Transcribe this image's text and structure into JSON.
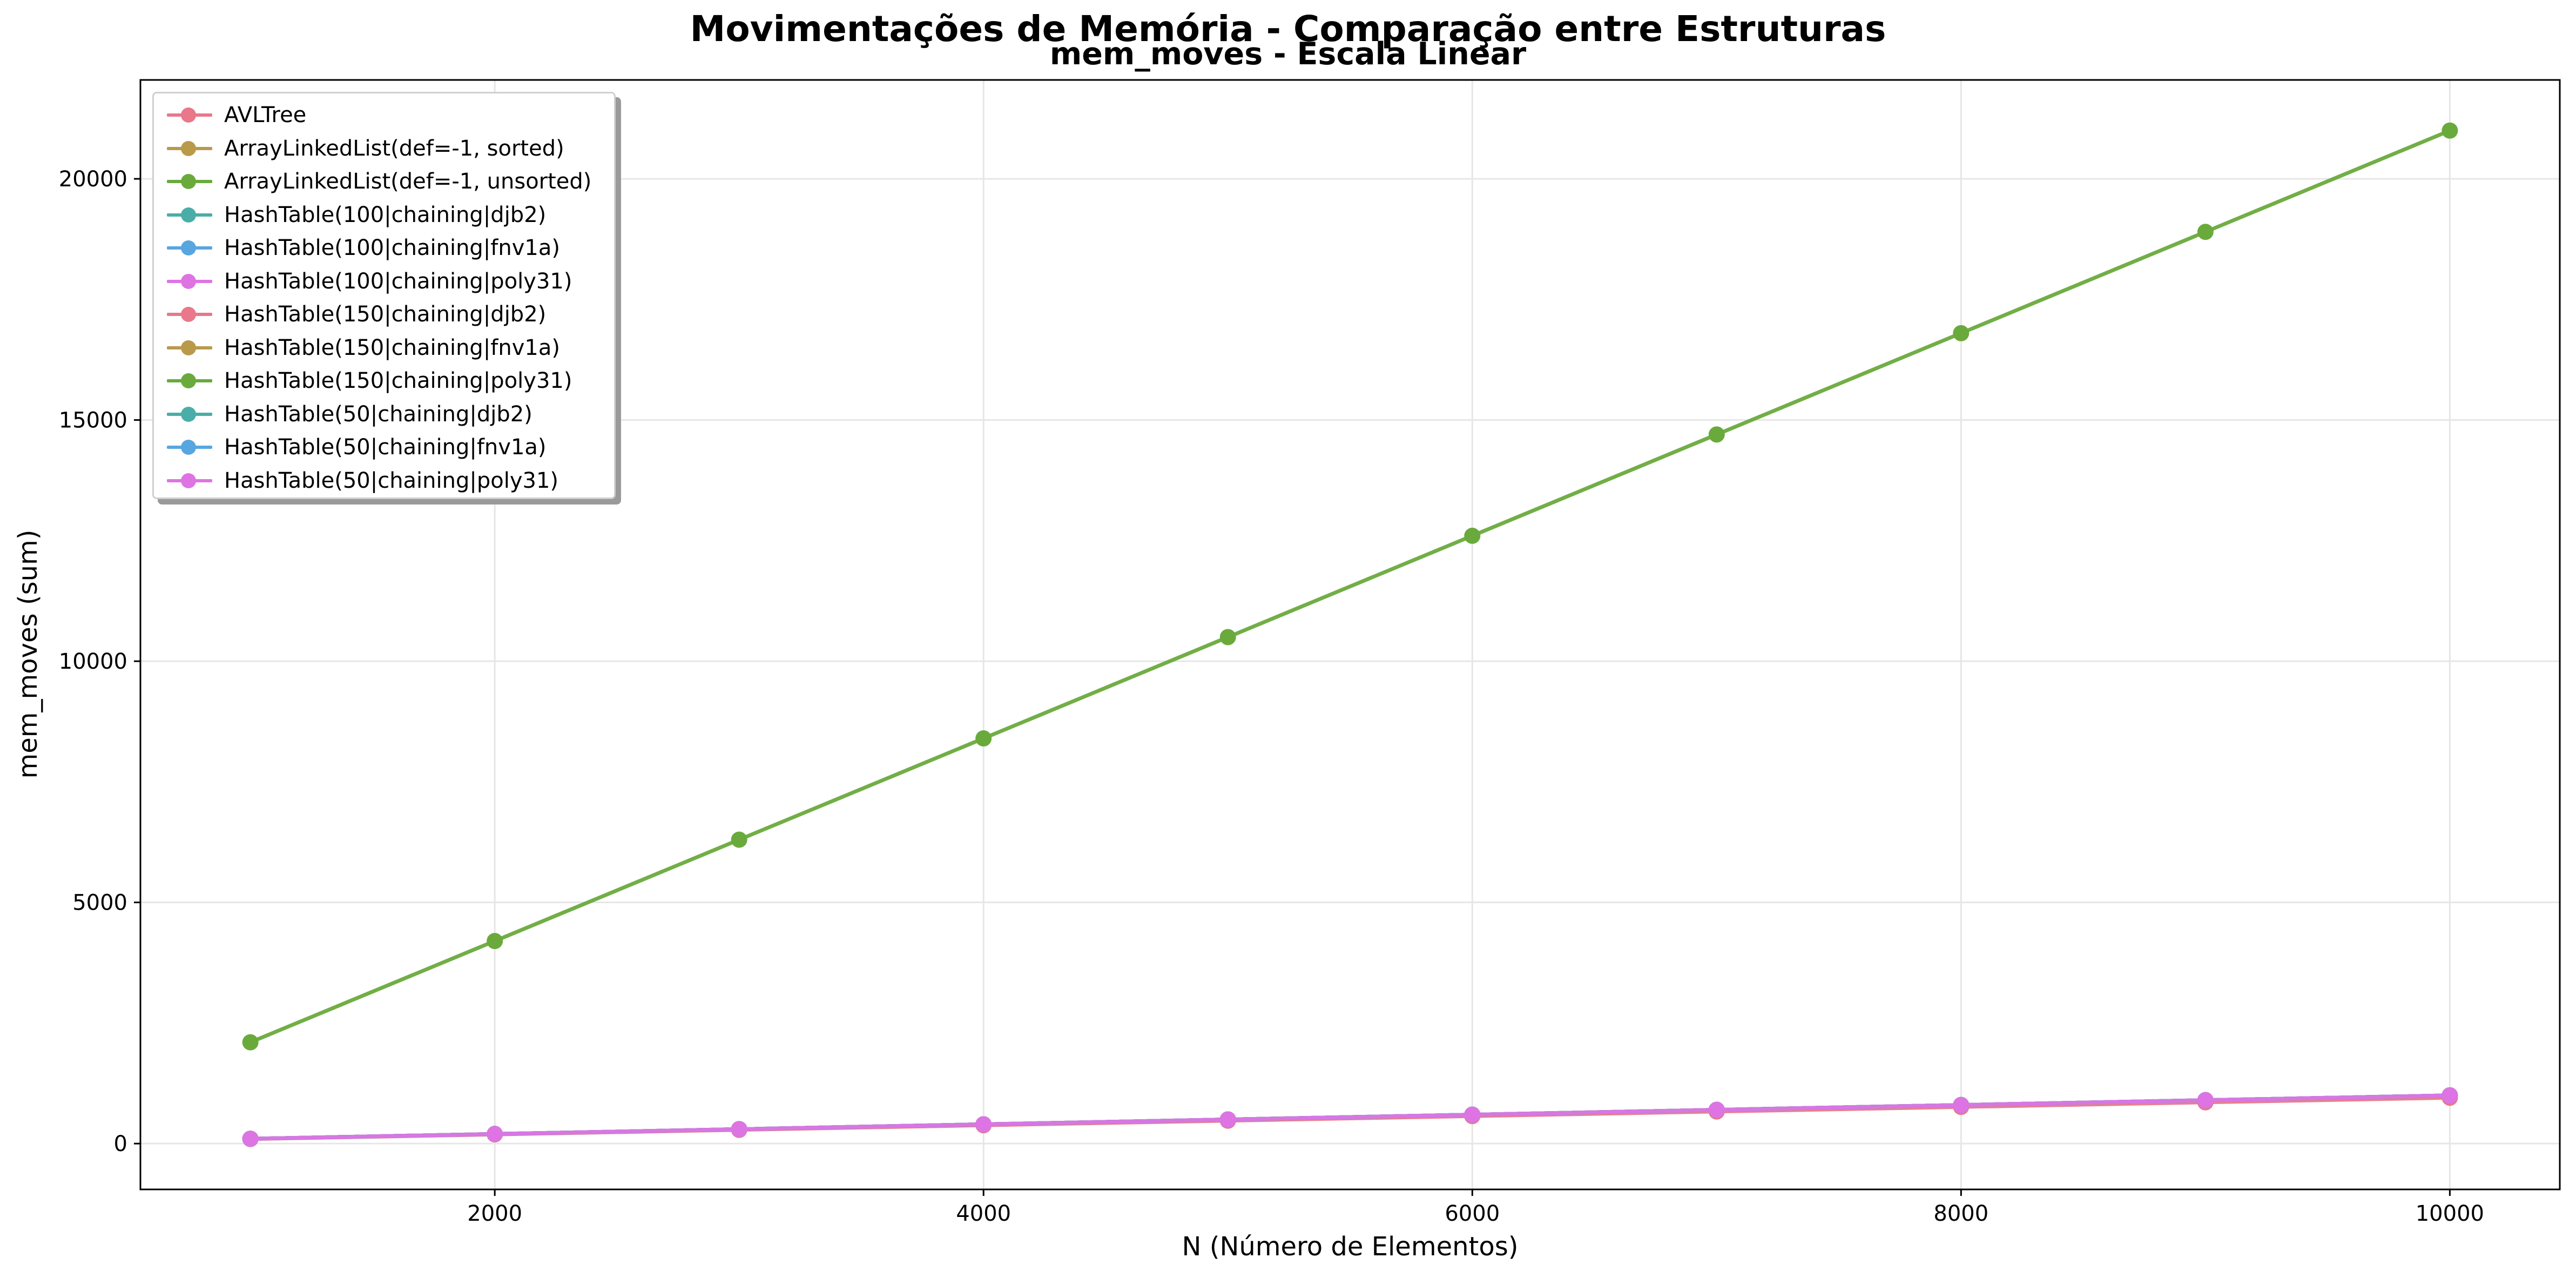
{
  "chart_data": {
    "type": "line",
    "title": "Movimentações de Memória - Comparação entre Estruturas",
    "subtitle": "mem_moves - Escala Linear",
    "xlabel": "N (Número de Elementos)",
    "ylabel": "mem_moves (sum)",
    "xlim": [
      550,
      10450
    ],
    "ylim": [
      -950,
      22050
    ],
    "xticks": [
      2000,
      4000,
      6000,
      8000,
      10000
    ],
    "yticks": [
      0,
      5000,
      10000,
      15000,
      20000
    ],
    "grid": true,
    "legend_position": "top-left",
    "x": [
      1000,
      2000,
      3000,
      4000,
      5000,
      6000,
      7000,
      8000,
      9000,
      10000
    ],
    "series": [
      {
        "name": "AVLTree",
        "color": "#e8788a",
        "values": [
          95,
          190,
          285,
          380,
          475,
          570,
          665,
          760,
          855,
          950
        ]
      },
      {
        "name": "ArrayLinkedList(def=-1, sorted)",
        "color": "#b89a4a",
        "values": [
          99,
          199,
          299,
          399,
          499,
          599,
          699,
          799,
          899,
          999
        ]
      },
      {
        "name": "ArrayLinkedList(def=-1, unsorted)",
        "color": "#6aaa3c",
        "values": [
          2100,
          4200,
          6300,
          8400,
          10500,
          12600,
          14700,
          16800,
          18900,
          21000
        ]
      },
      {
        "name": "HashTable(100|chaining|djb2)",
        "color": "#4aada8",
        "values": [
          100,
          200,
          300,
          400,
          500,
          600,
          700,
          800,
          900,
          1000
        ]
      },
      {
        "name": "HashTable(100|chaining|fnv1a)",
        "color": "#58a6e0",
        "values": [
          100,
          200,
          300,
          400,
          500,
          600,
          700,
          800,
          900,
          1000
        ]
      },
      {
        "name": "HashTable(100|chaining|poly31)",
        "color": "#de74e4",
        "values": [
          100,
          200,
          300,
          400,
          500,
          600,
          700,
          800,
          900,
          1000
        ]
      },
      {
        "name": "HashTable(150|chaining|djb2)",
        "color": "#e8788a",
        "values": [
          100,
          200,
          300,
          400,
          500,
          600,
          700,
          800,
          900,
          1000
        ]
      },
      {
        "name": "HashTable(150|chaining|fnv1a)",
        "color": "#b89a4a",
        "values": [
          100,
          200,
          300,
          400,
          500,
          600,
          700,
          800,
          900,
          1000
        ]
      },
      {
        "name": "HashTable(150|chaining|poly31)",
        "color": "#6aaa3c",
        "values": [
          100,
          200,
          300,
          400,
          500,
          600,
          700,
          800,
          900,
          1000
        ]
      },
      {
        "name": "HashTable(50|chaining|djb2)",
        "color": "#4aada8",
        "values": [
          100,
          200,
          300,
          400,
          500,
          600,
          700,
          800,
          900,
          1000
        ]
      },
      {
        "name": "HashTable(50|chaining|fnv1a)",
        "color": "#58a6e0",
        "values": [
          100,
          200,
          300,
          400,
          500,
          600,
          700,
          800,
          900,
          1000
        ]
      },
      {
        "name": "HashTable(50|chaining|poly31)",
        "color": "#de74e4",
        "values": [
          100,
          200,
          300,
          400,
          500,
          600,
          700,
          800,
          900,
          1000
        ]
      }
    ]
  }
}
